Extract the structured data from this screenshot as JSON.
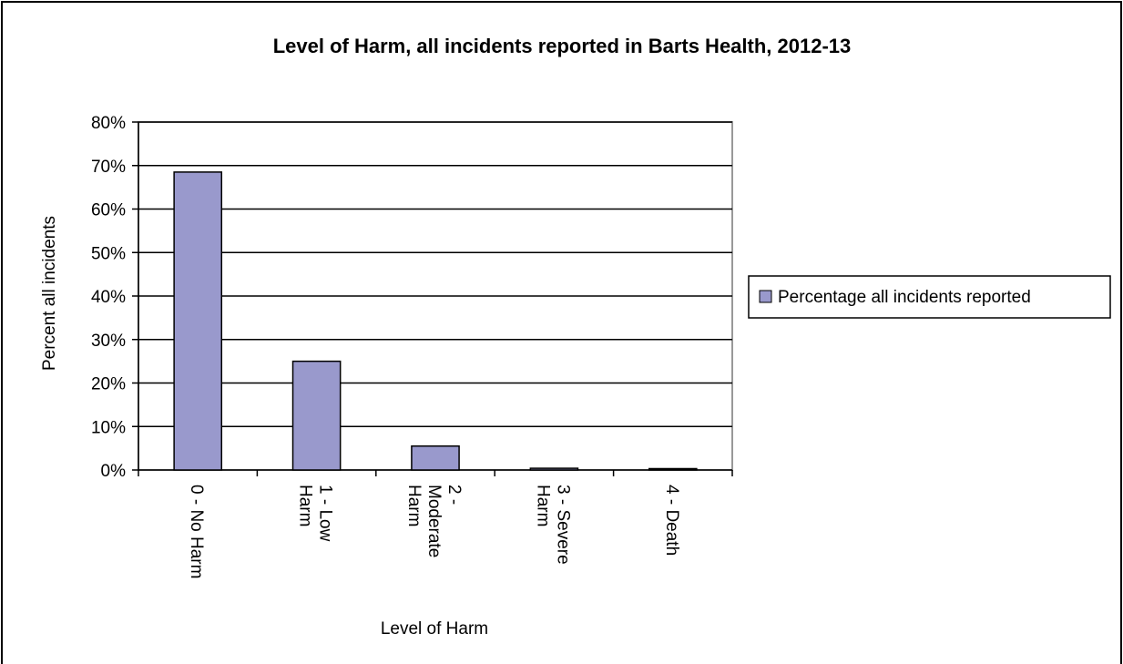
{
  "chart_data": {
    "type": "bar",
    "title": "Level of Harm, all incidents reported in Barts Health, 2012-13",
    "xlabel": "Level of Harm",
    "ylabel": "Percent all incidents",
    "categories": [
      [
        "0 - No Harm"
      ],
      [
        "1 - Low",
        "Harm"
      ],
      [
        "2 -",
        "Moderate",
        "Harm"
      ],
      [
        "3 - Severe",
        "Harm"
      ],
      [
        "4 - Death"
      ]
    ],
    "series": [
      {
        "name": "Percentage all incidents reported",
        "values": [
          68.5,
          25.0,
          5.5,
          0.4,
          0.3
        ],
        "color": "#9999cc"
      }
    ],
    "ylim": [
      0,
      80
    ],
    "yticks": [
      0,
      10,
      20,
      30,
      40,
      50,
      60,
      70,
      80
    ],
    "ytick_labels": [
      "0%",
      "10%",
      "20%",
      "30%",
      "40%",
      "50%",
      "60%",
      "70%",
      "80%"
    ],
    "grid": true,
    "legend_position": "right"
  }
}
